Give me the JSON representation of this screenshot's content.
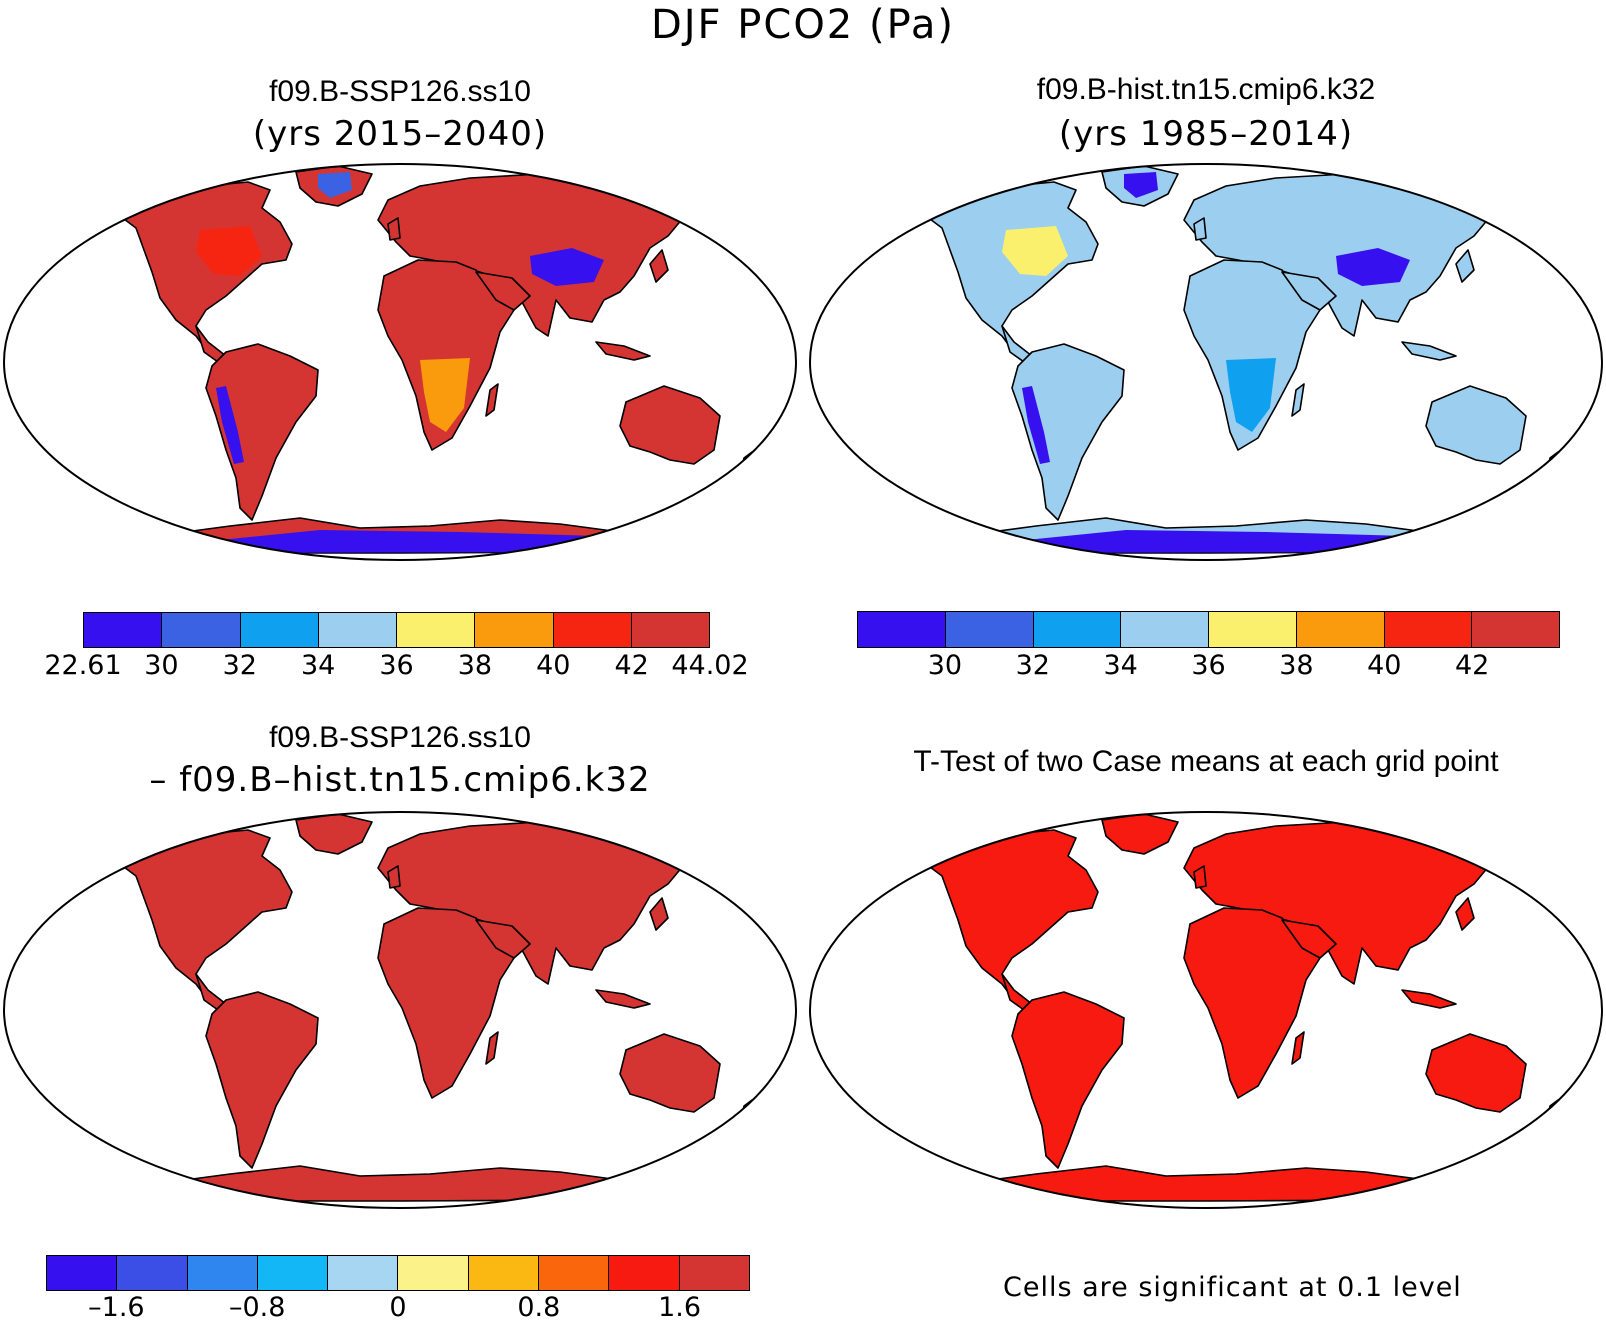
{
  "title": "DJF PCO2 (Pa)",
  "panels": [
    {
      "id": "case1",
      "title": "f09.B-SSP126.ss10",
      "subtitle": "(yrs 2015–2040)",
      "land_color": "#d43533",
      "colorbar": {
        "colors": [
          "#3610ee",
          "#3b62e3",
          "#0fa0ef",
          "#9ccfef",
          "#fbf06e",
          "#f99b0c",
          "#f62511",
          "#d43533"
        ],
        "labels": [
          "22.61",
          "30",
          "32",
          "34",
          "36",
          "38",
          "40",
          "42",
          "44.02"
        ]
      },
      "region_colors": {
        "na_interior": "#f62511",
        "andes": "#3610ee",
        "tibet": "#3610ee",
        "antarctica": "#3610ee",
        "greenland": "#3b62e3",
        "africa_south": "#f99b0c"
      }
    },
    {
      "id": "case2",
      "title": "f09.B-hist.tn15.cmip6.k32",
      "subtitle": "(yrs 1985–2014)",
      "land_color": "#9ccfef",
      "colorbar": {
        "colors": [
          "#3610ee",
          "#3b62e3",
          "#0fa0ef",
          "#9ccfef",
          "#fbf06e",
          "#f99b0c",
          "#f62511",
          "#d43533"
        ],
        "labels": [
          "30",
          "32",
          "34",
          "36",
          "38",
          "40",
          "42"
        ]
      },
      "region_colors": {
        "na_interior": "#fbf06e",
        "andes": "#3610ee",
        "tibet": "#3610ee",
        "antarctica": "#3610ee",
        "greenland": "#3610ee",
        "africa_south": "#0fa0ef"
      }
    },
    {
      "id": "diff",
      "title": "f09.B-SSP126.ss10",
      "subtitle": "– f09.B–hist.tn15.cmip6.k32",
      "land_color": "#d43533",
      "colorbar": {
        "colors": [
          "#3610ee",
          "#3b4fe6",
          "#2e86ee",
          "#14b7f5",
          "#a6d6f2",
          "#fbf38a",
          "#fbb712",
          "#f9660c",
          "#f71a10",
          "#d43533"
        ],
        "labels": [
          "–1.6",
          "–0.8",
          "0",
          "0.8",
          "1.6"
        ]
      }
    },
    {
      "id": "ttest",
      "title": "T-Test of two Case means at each grid point",
      "land_color": "#f71a10",
      "note": "Cells are significant at 0.1 level"
    }
  ]
}
